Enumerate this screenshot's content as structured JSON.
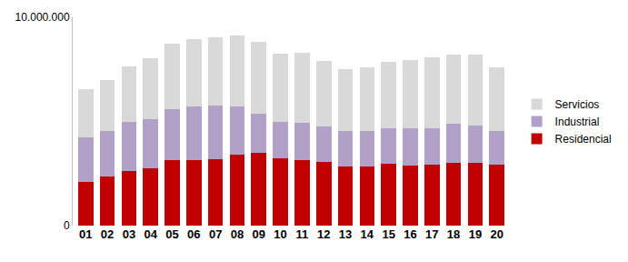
{
  "chart_data": {
    "type": "bar",
    "stacked": true,
    "legend": "right",
    "grid": false,
    "categories": [
      "01",
      "02",
      "03",
      "04",
      "05",
      "06",
      "07",
      "08",
      "09",
      "10",
      "11",
      "12",
      "13",
      "14",
      "15",
      "16",
      "17",
      "18",
      "19",
      "20"
    ],
    "series": [
      {
        "name": "Residencial",
        "color": "#c00000",
        "values": [
          2100000,
          2370000,
          2600000,
          2760000,
          3160000,
          3160000,
          3200000,
          3420000,
          3510000,
          3250000,
          3160000,
          3070000,
          2850000,
          2850000,
          2980000,
          2900000,
          2940000,
          3030000,
          3030000,
          2940000
        ]
      },
      {
        "name": "Industrial",
        "color": "#b1a0c7",
        "values": [
          2150000,
          2190000,
          2400000,
          2370000,
          2450000,
          2540000,
          2550000,
          2280000,
          1880000,
          1750000,
          1790000,
          1710000,
          1710000,
          1710000,
          1710000,
          1790000,
          1750000,
          1840000,
          1790000,
          1620000
        ]
      },
      {
        "name": "Servicios",
        "color": "#d9d9d9",
        "values": [
          2300000,
          2440000,
          2630000,
          2900000,
          3120000,
          3250000,
          3290000,
          3420000,
          3430000,
          3250000,
          3340000,
          3120000,
          2940000,
          3030000,
          3160000,
          3250000,
          3380000,
          3330000,
          3380000,
          3030000
        ]
      }
    ],
    "ylim": [
      0,
      10000000
    ],
    "yticks": [
      0,
      {
        "value": 10000000,
        "label": "10.000.000"
      }
    ]
  }
}
